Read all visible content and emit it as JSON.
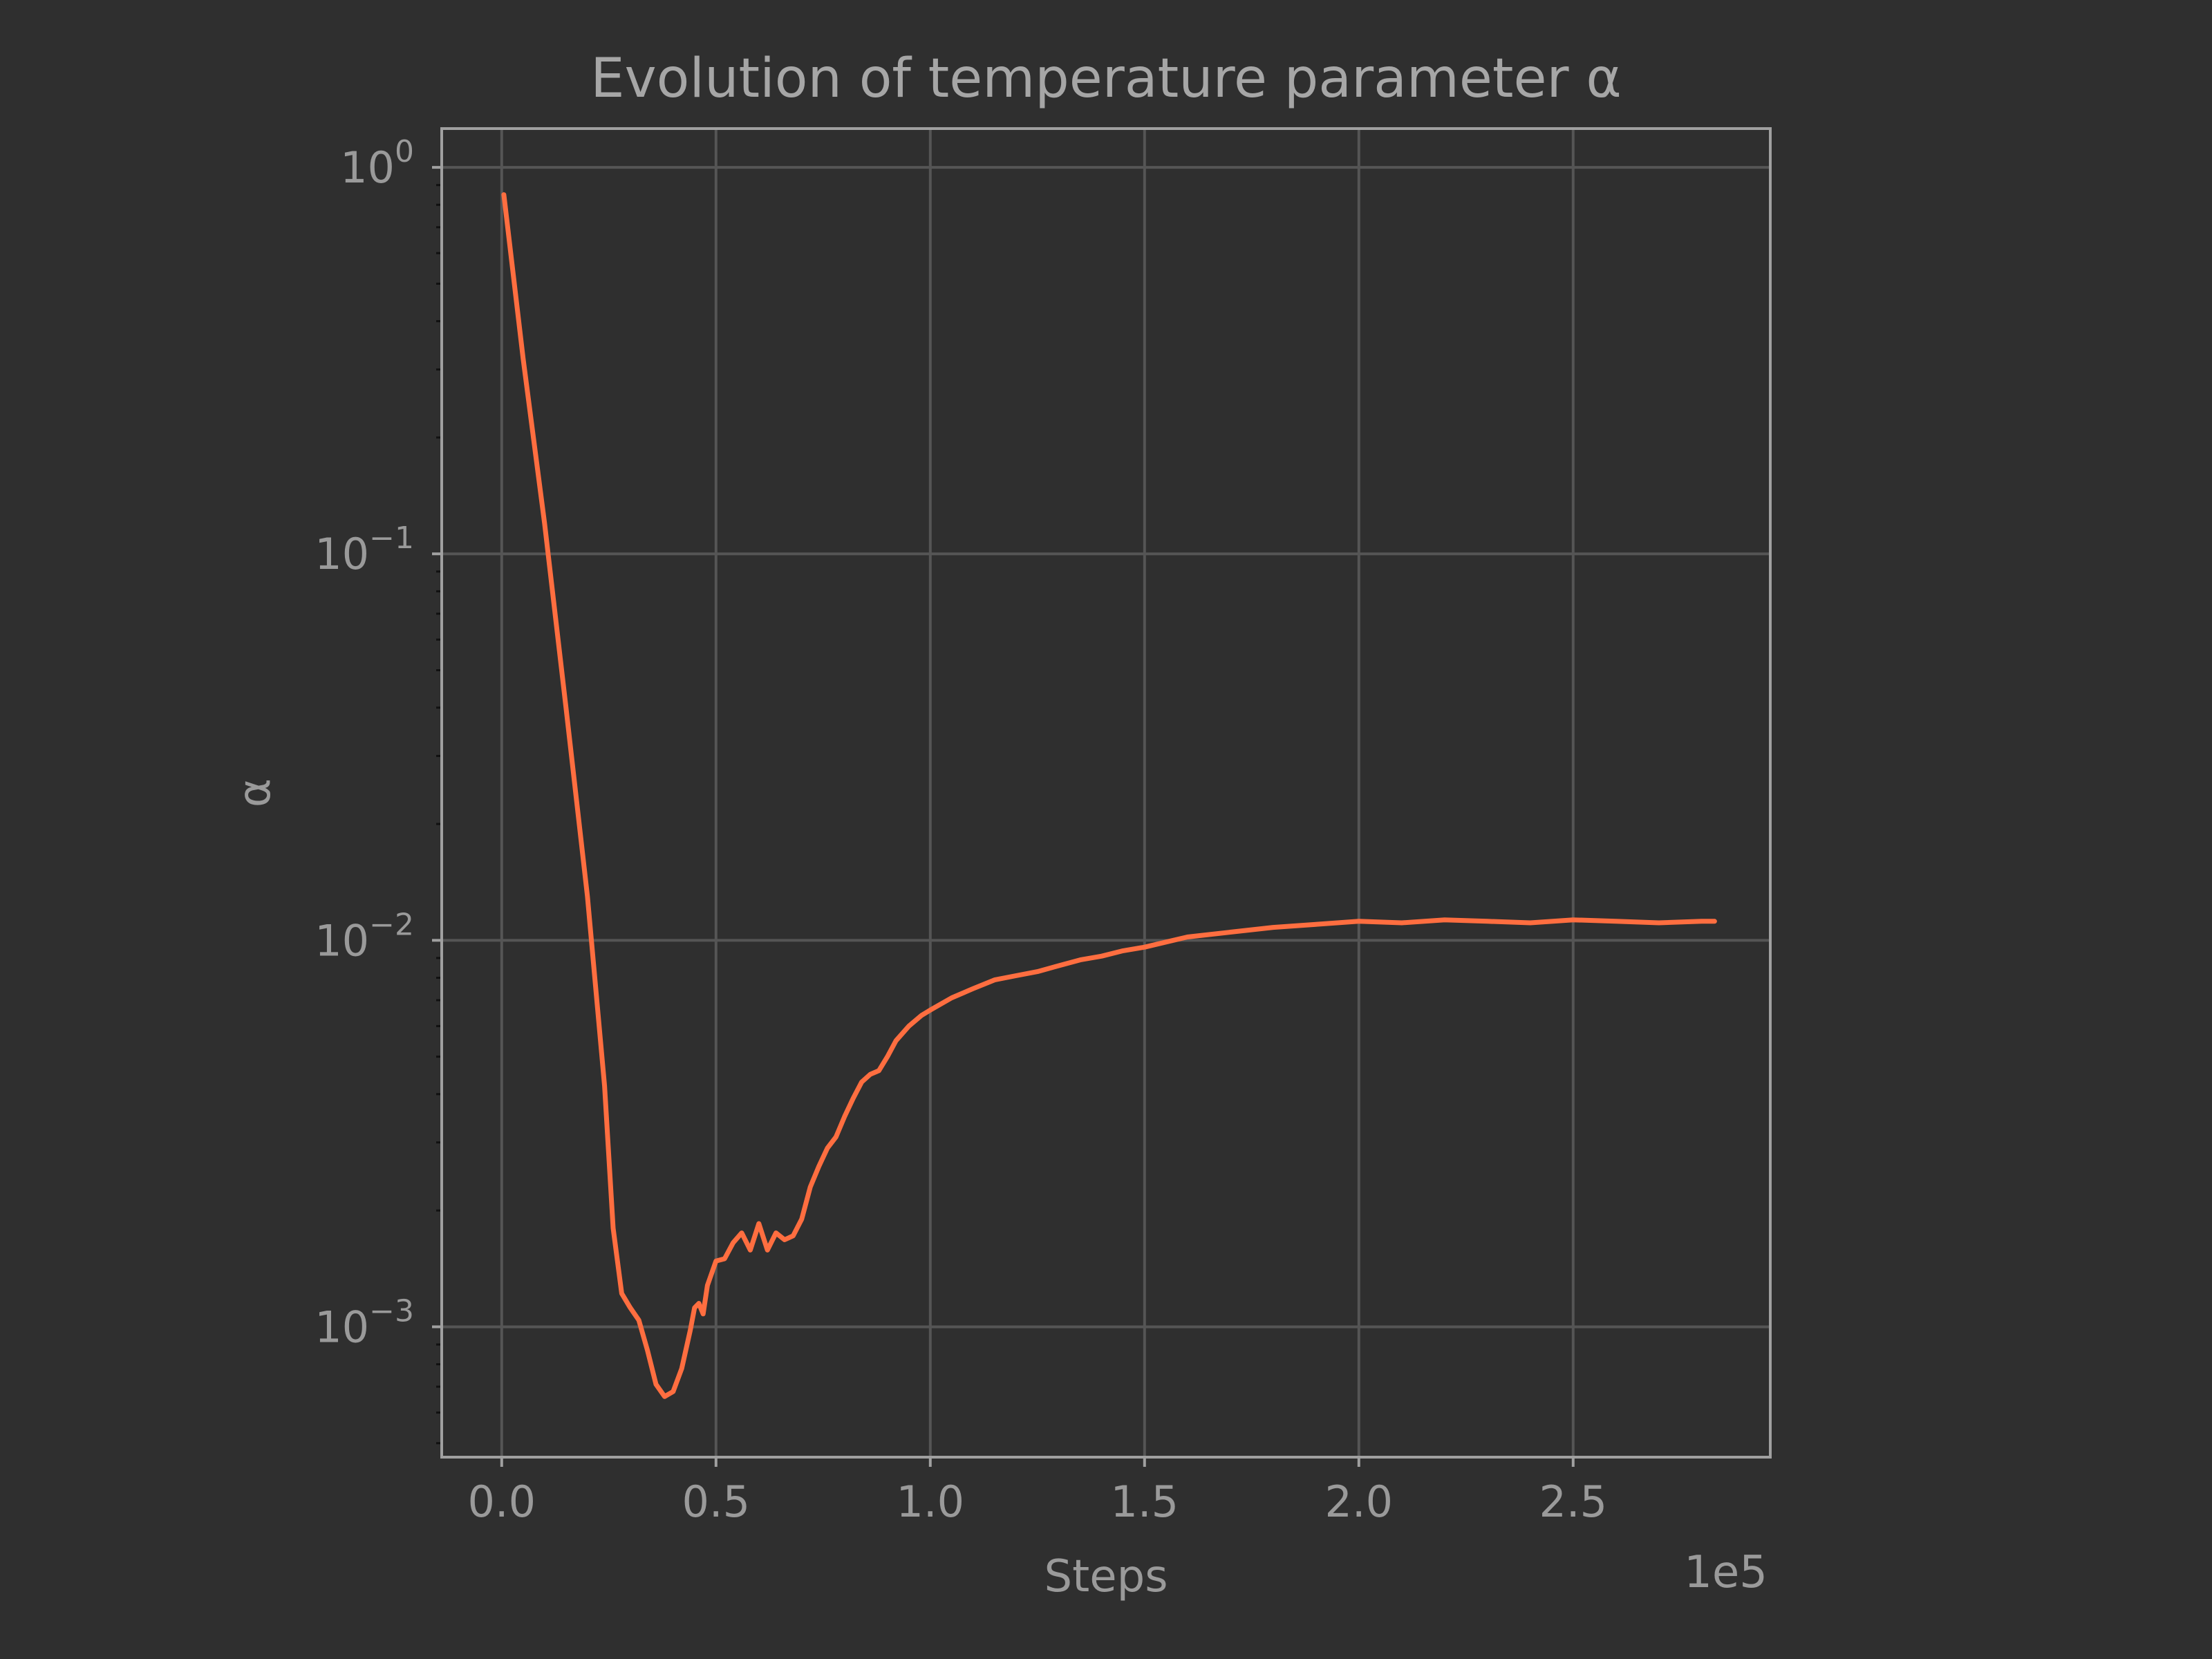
{
  "chart_data": {
    "type": "line",
    "title": "Evolution of temperature parameter α",
    "xlabel": "Steps",
    "ylabel": "α",
    "x_offset_text": "1e5",
    "xscale": "linear",
    "yscale": "log",
    "xlim": [
      -14000,
      296000
    ],
    "ylim": [
      0.00046,
      1.26
    ],
    "x_ticks": [
      {
        "value": 0,
        "label": "0.0"
      },
      {
        "value": 50000,
        "label": "0.5"
      },
      {
        "value": 100000,
        "label": "1.0"
      },
      {
        "value": 150000,
        "label": "1.5"
      },
      {
        "value": 200000,
        "label": "2.0"
      },
      {
        "value": 250000,
        "label": "2.5"
      }
    ],
    "y_ticks": [
      {
        "value": 1,
        "base": "10",
        "exp": "0"
      },
      {
        "value": 0.1,
        "base": "10",
        "exp": "−1"
      },
      {
        "value": 0.01,
        "base": "10",
        "exp": "−2"
      },
      {
        "value": 0.001,
        "base": "10",
        "exp": "−3"
      }
    ],
    "grid": true,
    "colors": {
      "background": "#2f2f2f",
      "line": "#ff6e40",
      "grid": "#555555",
      "frame": "#a0a0a0",
      "text": "#9a9a9a"
    },
    "series": [
      {
        "color": "#ff6e40",
        "x": [
          500,
          5000,
          10000,
          15000,
          20000,
          24000,
          26000,
          28000,
          30000,
          32000,
          34000,
          36000,
          38000,
          40000,
          42000,
          44000,
          45000,
          46000,
          47000,
          48000,
          50000,
          52000,
          54000,
          56000,
          58000,
          60000,
          62000,
          64000,
          66000,
          68000,
          70000,
          72000,
          74000,
          76000,
          78000,
          80000,
          82000,
          84000,
          86000,
          88000,
          90000,
          92000,
          95000,
          98000,
          100000,
          105000,
          110000,
          115000,
          120000,
          125000,
          130000,
          135000,
          140000,
          145000,
          150000,
          155000,
          160000,
          170000,
          180000,
          190000,
          200000,
          210000,
          220000,
          230000,
          240000,
          250000,
          260000,
          270000,
          280000,
          283000
        ],
        "y": [
          0.85,
          0.32,
          0.12,
          0.04,
          0.013,
          0.0042,
          0.0018,
          0.00122,
          0.00112,
          0.00104,
          0.00087,
          0.00071,
          0.00066,
          0.00068,
          0.00078,
          0.00098,
          0.00112,
          0.00115,
          0.00108,
          0.00128,
          0.00148,
          0.0015,
          0.00165,
          0.00175,
          0.00158,
          0.00185,
          0.00158,
          0.00175,
          0.00168,
          0.00172,
          0.0019,
          0.0023,
          0.0026,
          0.0029,
          0.0031,
          0.0035,
          0.0039,
          0.0043,
          0.0045,
          0.0046,
          0.005,
          0.0055,
          0.006,
          0.0064,
          0.0066,
          0.0071,
          0.0075,
          0.0079,
          0.0081,
          0.0083,
          0.0086,
          0.0089,
          0.0091,
          0.0094,
          0.0096,
          0.0099,
          0.0102,
          0.0105,
          0.0108,
          0.011,
          0.0112,
          0.0111,
          0.0113,
          0.0112,
          0.0111,
          0.0113,
          0.0112,
          0.0111,
          0.0112,
          0.0112
        ]
      }
    ]
  }
}
